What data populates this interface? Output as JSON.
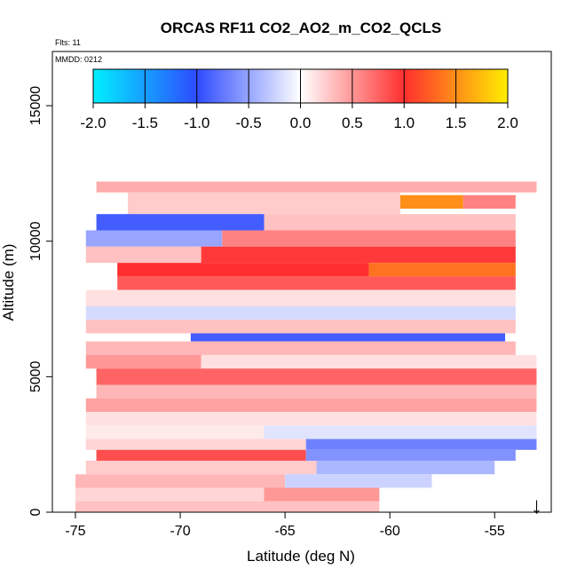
{
  "chart_data": {
    "type": "heatmap",
    "title": "ORCAS RF11 CO2_AO2_m_CO2_QCLS",
    "annotations": {
      "flights": "Flts: 11",
      "mmdd": "MMDD: 0212"
    },
    "xlabel": "Latitude (deg N)",
    "ylabel": "Altitude (m)",
    "xlim": [
      -76.1,
      -52.3
    ],
    "ylim": [
      0,
      17000
    ],
    "x_ticks": [
      -75,
      -70,
      -65,
      -60,
      -55
    ],
    "x_tick_labels": [
      "-75",
      "-70",
      "-65",
      "-60",
      "-55"
    ],
    "y_ticks": [
      0,
      5000,
      10000,
      15000
    ],
    "y_tick_labels": [
      "0",
      "5000",
      "10000",
      "15000"
    ],
    "colorbar": {
      "min": -2.0,
      "max": 2.0,
      "ticks": [
        -2.0,
        -1.5,
        -1.0,
        -0.5,
        0.0,
        0.5,
        1.0,
        1.5,
        2.0
      ],
      "tick_labels": [
        "-2.0",
        "-1.5",
        "-1.0",
        "-0.5",
        "0.0",
        "0.5",
        "1.0",
        "1.5",
        "2.0"
      ],
      "colors": [
        "#00f0ff",
        "#2e4bff",
        "#ffffff",
        "#ff2f2f",
        "#ffee00"
      ]
    },
    "marker": {
      "symbol": "↓",
      "lat": -53.0
    },
    "cells": [
      {
        "lat0": -74.0,
        "lat1": -53.0,
        "alt0": 11800,
        "alt1": 12200,
        "value": 0.4
      },
      {
        "lat0": -72.5,
        "lat1": -59.5,
        "alt0": 11000,
        "alt1": 11800,
        "value": 0.25
      },
      {
        "lat0": -59.5,
        "lat1": -56.5,
        "alt0": 11200,
        "alt1": 11700,
        "value": 1.5
      },
      {
        "lat0": -56.5,
        "lat1": -54.0,
        "alt0": 11200,
        "alt1": 11700,
        "value": 0.6
      },
      {
        "lat0": -74.0,
        "lat1": -66.0,
        "alt0": 10400,
        "alt1": 11000,
        "value": -0.9
      },
      {
        "lat0": -66.0,
        "lat1": -54.0,
        "alt0": 10400,
        "alt1": 11000,
        "value": 0.3
      },
      {
        "lat0": -74.5,
        "lat1": -68.0,
        "alt0": 9800,
        "alt1": 10400,
        "value": -0.5
      },
      {
        "lat0": -68.0,
        "lat1": -54.0,
        "alt0": 9800,
        "alt1": 10400,
        "value": 0.6
      },
      {
        "lat0": -74.5,
        "lat1": -69.0,
        "alt0": 9200,
        "alt1": 9800,
        "value": 0.3
      },
      {
        "lat0": -69.0,
        "lat1": -54.0,
        "alt0": 9200,
        "alt1": 9800,
        "value": 0.95
      },
      {
        "lat0": -73.0,
        "lat1": -61.0,
        "alt0": 8700,
        "alt1": 9200,
        "value": 1.0
      },
      {
        "lat0": -61.0,
        "lat1": -54.0,
        "alt0": 8700,
        "alt1": 9200,
        "value": 1.35
      },
      {
        "lat0": -73.0,
        "lat1": -54.0,
        "alt0": 8200,
        "alt1": 8700,
        "value": 0.8
      },
      {
        "lat0": -74.5,
        "lat1": -54.0,
        "alt0": 7600,
        "alt1": 8200,
        "value": 0.15
      },
      {
        "lat0": -74.5,
        "lat1": -54.0,
        "alt0": 7100,
        "alt1": 7600,
        "value": -0.2
      },
      {
        "lat0": -74.5,
        "lat1": -54.0,
        "alt0": 6600,
        "alt1": 7100,
        "value": 0.3
      },
      {
        "lat0": -69.5,
        "lat1": -54.5,
        "alt0": 6300,
        "alt1": 6600,
        "value": -0.9
      },
      {
        "lat0": -74.5,
        "lat1": -54.0,
        "alt0": 5800,
        "alt1": 6300,
        "value": 0.35
      },
      {
        "lat0": -74.5,
        "lat1": -69.0,
        "alt0": 5300,
        "alt1": 5800,
        "value": 0.5
      },
      {
        "lat0": -69.0,
        "lat1": -53.0,
        "alt0": 5300,
        "alt1": 5800,
        "value": 0.15
      },
      {
        "lat0": -74.0,
        "lat1": -53.0,
        "alt0": 4700,
        "alt1": 5300,
        "value": 0.75
      },
      {
        "lat0": -74.0,
        "lat1": -53.0,
        "alt0": 4200,
        "alt1": 4700,
        "value": 0.35
      },
      {
        "lat0": -74.5,
        "lat1": -53.0,
        "alt0": 3700,
        "alt1": 4200,
        "value": 0.45
      },
      {
        "lat0": -74.5,
        "lat1": -53.0,
        "alt0": 3200,
        "alt1": 3700,
        "value": 0.15
      },
      {
        "lat0": -74.5,
        "lat1": -66.0,
        "alt0": 2700,
        "alt1": 3200,
        "value": 0.1
      },
      {
        "lat0": -66.0,
        "lat1": -53.0,
        "alt0": 2700,
        "alt1": 3200,
        "value": -0.15
      },
      {
        "lat0": -74.5,
        "lat1": -64.0,
        "alt0": 2300,
        "alt1": 2700,
        "value": 0.2
      },
      {
        "lat0": -64.0,
        "lat1": -53.0,
        "alt0": 2300,
        "alt1": 2700,
        "value": -0.7
      },
      {
        "lat0": -74.0,
        "lat1": -64.0,
        "alt0": 1900,
        "alt1": 2300,
        "value": 0.85
      },
      {
        "lat0": -64.0,
        "lat1": -54.0,
        "alt0": 1900,
        "alt1": 2300,
        "value": -0.6
      },
      {
        "lat0": -74.5,
        "lat1": -63.5,
        "alt0": 1400,
        "alt1": 1900,
        "value": 0.25
      },
      {
        "lat0": -63.5,
        "lat1": -55.0,
        "alt0": 1400,
        "alt1": 1900,
        "value": -0.4
      },
      {
        "lat0": -75.0,
        "lat1": -65.0,
        "alt0": 900,
        "alt1": 1400,
        "value": 0.35
      },
      {
        "lat0": -65.0,
        "lat1": -58.0,
        "alt0": 900,
        "alt1": 1400,
        "value": -0.25
      },
      {
        "lat0": -75.0,
        "lat1": -66.0,
        "alt0": 400,
        "alt1": 900,
        "value": 0.2
      },
      {
        "lat0": -66.0,
        "lat1": -60.5,
        "alt0": 400,
        "alt1": 900,
        "value": 0.5
      },
      {
        "lat0": -75.0,
        "lat1": -60.5,
        "alt0": 0,
        "alt1": 400,
        "value": 0.3
      }
    ]
  }
}
